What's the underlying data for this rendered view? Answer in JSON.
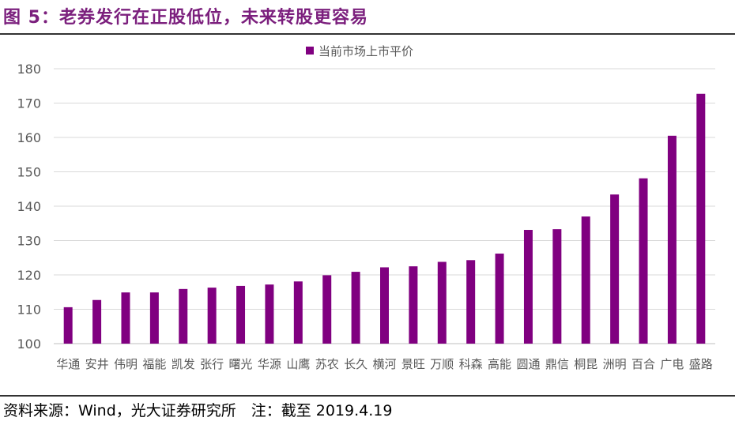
{
  "title": "图 5：老券发行在正股低位，未来转股更容易",
  "source": "资料来源：Wind，光大证券研究所　注：截至 2019.4.19",
  "colors": {
    "bar": "#800080",
    "title": "#7b1f7d"
  },
  "chart_data": {
    "type": "bar",
    "legend_position": "top",
    "grid": true,
    "ylim": [
      100,
      180
    ],
    "yticks": [
      100,
      110,
      120,
      130,
      140,
      150,
      160,
      170,
      180
    ],
    "categories": [
      "华通",
      "安井",
      "伟明",
      "福能",
      "凯发",
      "张行",
      "曙光",
      "华源",
      "山鹰",
      "苏农",
      "长久",
      "横河",
      "景旺",
      "万顺",
      "科森",
      "高能",
      "圆通",
      "鼎信",
      "桐昆",
      "洲明",
      "百合",
      "广电",
      "盛路"
    ],
    "series": [
      {
        "name": "当前市场上市平价",
        "values": [
          110.6,
          112.7,
          114.9,
          114.9,
          115.9,
          116.3,
          116.8,
          117.2,
          118.1,
          119.9,
          120.9,
          122.2,
          122.5,
          123.8,
          124.3,
          126.2,
          133.1,
          133.3,
          137.0,
          143.4,
          148.1,
          160.5,
          172.7
        ]
      }
    ]
  }
}
